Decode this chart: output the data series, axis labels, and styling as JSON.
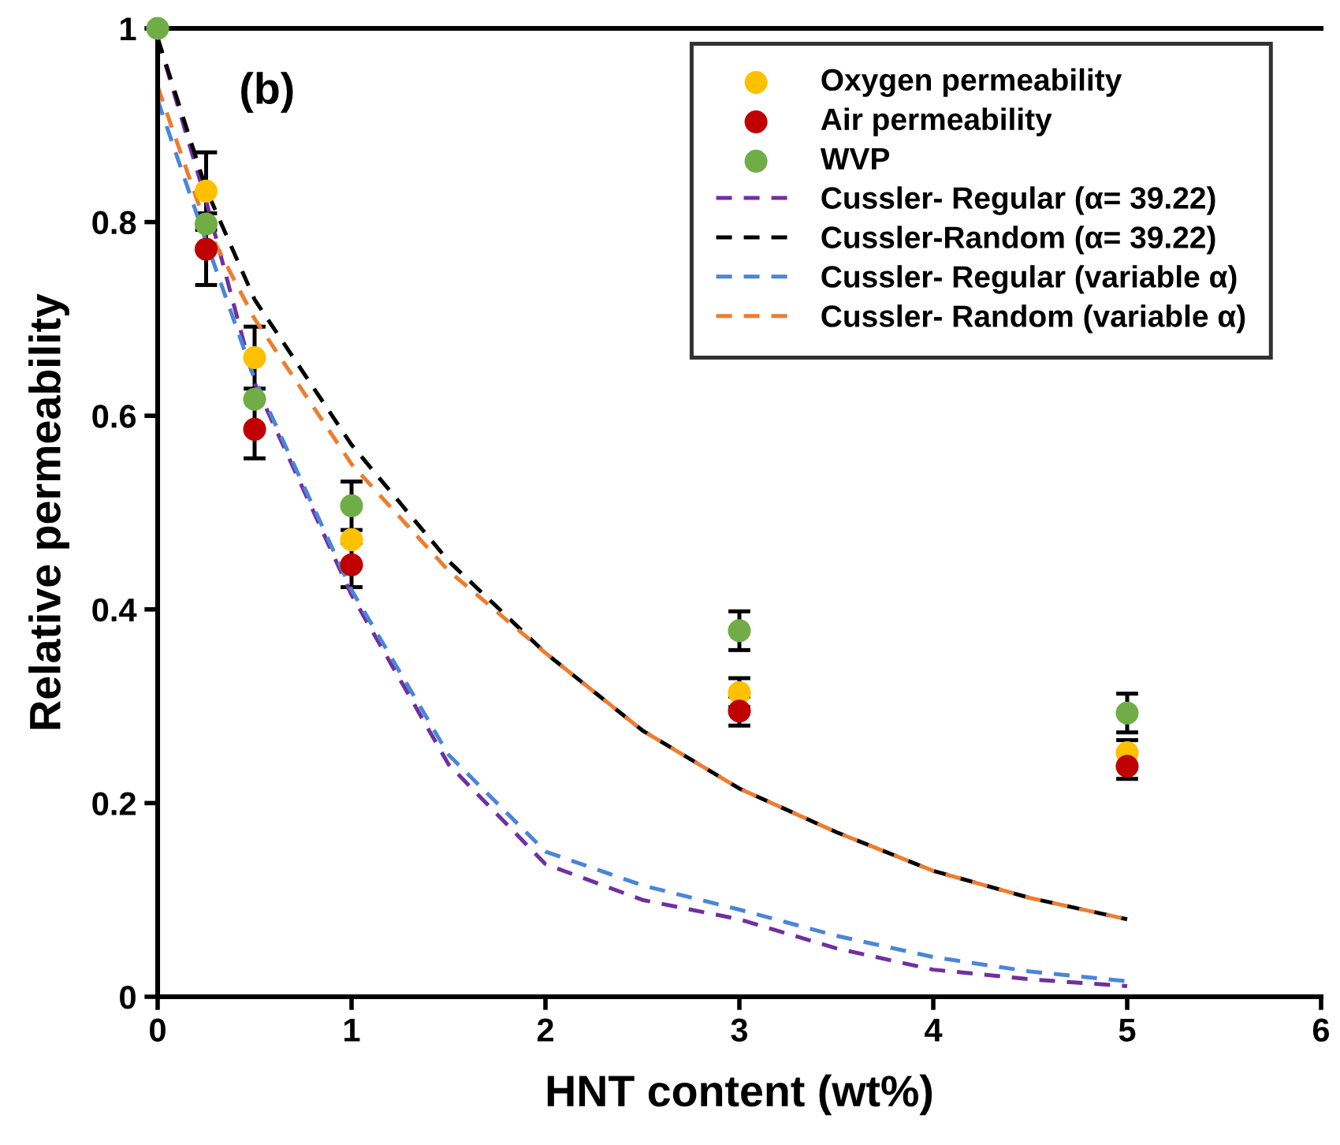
{
  "chart_data": {
    "type": "scatter",
    "xlabel": "HNT content (wt%)",
    "ylabel": "Relative permeability",
    "annotations": [
      "(b)"
    ],
    "xlim": [
      0,
      6
    ],
    "xticks": [
      0,
      1,
      2,
      3,
      4,
      5,
      6
    ],
    "ylim": [
      0,
      1
    ],
    "yticks": [
      0,
      0.2,
      0.4,
      0.6,
      0.8,
      1
    ],
    "grid": false,
    "legend": "top right",
    "marker": "circle",
    "x": [
      0,
      0.25,
      0.5,
      1,
      3,
      5
    ],
    "series": [
      {
        "name": "Oxygen permeability",
        "color": "#ffc000",
        "values": [
          null,
          0.832,
          0.66,
          0.472,
          0.314,
          0.252
        ],
        "errors": [
          null,
          0.04,
          0.032,
          null,
          0.015,
          0.013
        ]
      },
      {
        "name": "Air permeability",
        "color": "#c00000",
        "values": [
          null,
          0.772,
          0.586,
          0.446,
          0.295,
          0.238
        ],
        "errors": [
          null,
          0.037,
          0.03,
          0.023,
          0.015,
          0.013
        ]
      },
      {
        "name": "WVP",
        "color": "#70ad47",
        "values": [
          1,
          0.798,
          0.617,
          0.507,
          0.378,
          0.293
        ],
        "errors": [
          null,
          null,
          null,
          0.025,
          0.02,
          0.02
        ]
      },
      {
        "name": "Cussler- Regular (α= 39.22)",
        "type": "line",
        "line_style": "dashed",
        "marker": "none",
        "color": "#7030a0",
        "x": [
          0,
          0.25,
          0.5,
          1,
          1.5,
          2,
          2.5,
          3,
          3.5,
          4,
          4.5,
          5
        ],
        "values": [
          0.99,
          0.822,
          0.634,
          0.415,
          0.24,
          0.137,
          0.1,
          0.08,
          0.05,
          0.028,
          0.018,
          0.011
        ]
      },
      {
        "name": "Cussler-Random (α= 39.22)",
        "type": "line",
        "line_style": "dashed",
        "marker": "none",
        "color": "#000000",
        "x": [
          0,
          0.25,
          0.5,
          1,
          1.5,
          2,
          2.5,
          3,
          3.5,
          4,
          4.5,
          5
        ],
        "values": [
          0.99,
          0.834,
          0.72,
          0.57,
          0.45,
          0.355,
          0.275,
          0.215,
          0.17,
          0.13,
          0.102,
          0.08
        ]
      },
      {
        "name": "Cussler- Regular (variable α)",
        "type": "line",
        "line_style": "dashed",
        "marker": "none",
        "color": "#4a86d8",
        "x": [
          0,
          0.25,
          0.5,
          1,
          1.5,
          2,
          2.5,
          3,
          3.5,
          4,
          4.5,
          5
        ],
        "values": [
          0.926,
          0.78,
          0.638,
          0.42,
          0.25,
          0.15,
          0.115,
          0.09,
          0.063,
          0.041,
          0.026,
          0.016
        ]
      },
      {
        "name": "Cussler- Random (variable α)",
        "type": "line",
        "line_style": "dashed",
        "marker": "none",
        "color": "#ed7d31",
        "x": [
          0,
          0.25,
          0.5,
          1,
          1.5,
          2,
          2.5,
          3,
          3.5,
          4,
          4.5,
          5
        ],
        "values": [
          0.94,
          0.796,
          0.7,
          0.55,
          0.44,
          0.355,
          0.275,
          0.215,
          0.17,
          0.13,
          0.102,
          0.08
        ]
      }
    ]
  }
}
